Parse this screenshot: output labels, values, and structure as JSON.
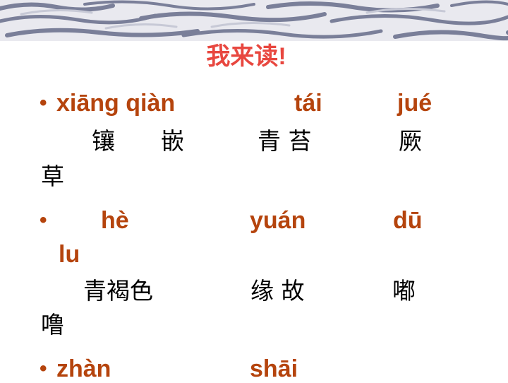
{
  "title": "我来读!",
  "items": [
    {
      "pinyin": [
        "xiāng qiàn",
        "tái",
        "jué"
      ],
      "chars": [
        "镶",
        "嵌",
        "青 苔",
        "厥",
        "草"
      ]
    },
    {
      "pinyin": [
        "hè",
        "yuán",
        "dū",
        "lu"
      ],
      "chars": [
        "青褐色",
        "缘 故",
        "嘟",
        "噜"
      ]
    },
    {
      "pinyin": [
        "zhàn",
        "shāi"
      ]
    }
  ],
  "bullet": "•",
  "colors": {
    "title": "#e8473f",
    "pinyin": "#b5440d",
    "text": "#000000",
    "banner_wave": "#7a7f99"
  }
}
